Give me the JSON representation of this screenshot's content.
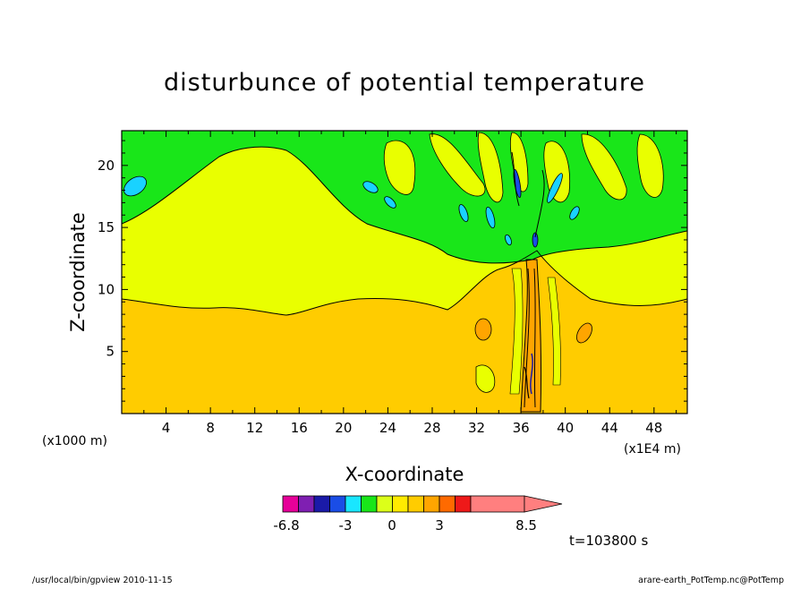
{
  "chart_data": {
    "type": "heatmap",
    "title": "disturbunce of potential temperature",
    "xlabel": "X-coordinate",
    "ylabel": "Z-coordinate",
    "x_unit_left": "(x1000 m)",
    "x_unit_right": "(x1E4 m)",
    "xlim": [
      0,
      51
    ],
    "ylim": [
      0,
      22.8
    ],
    "x_ticks": [
      "4",
      "8",
      "12",
      "16",
      "20",
      "24",
      "28",
      "32",
      "36",
      "40",
      "44",
      "48"
    ],
    "x_tick_values": [
      4,
      8,
      12,
      16,
      20,
      24,
      28,
      32,
      36,
      40,
      44,
      48
    ],
    "y_ticks": [
      "5",
      "10",
      "15",
      "20"
    ],
    "y_tick_values": [
      5,
      10,
      15,
      20
    ],
    "colorbar": {
      "colors": [
        "#e60099",
        "#7f1fb2",
        "#1a1aa8",
        "#1a4de6",
        "#19e6ff",
        "#19e619",
        "#dcff19",
        "#ffeb00",
        "#ffcc00",
        "#ffa500",
        "#ff6a00",
        "#ee1919",
        "#ff7f7f"
      ],
      "labels": [
        "-6.8",
        "-3",
        "0",
        "3",
        "8.5"
      ],
      "label_values": [
        -6.8,
        -3,
        0,
        3,
        8.5
      ]
    },
    "time_label": "t=103800 s",
    "regions": {
      "green": "#19e619",
      "yellow": "#e9ff00",
      "orange": "#ffcc00",
      "light_orange": "#ffa500",
      "cyan": "#19d2ff",
      "contour": "#000000"
    }
  },
  "footer": {
    "left": "/usr/local/bin/gpview   2010-11-15",
    "right": "arare-earth_PotTemp.nc@PotTemp"
  }
}
